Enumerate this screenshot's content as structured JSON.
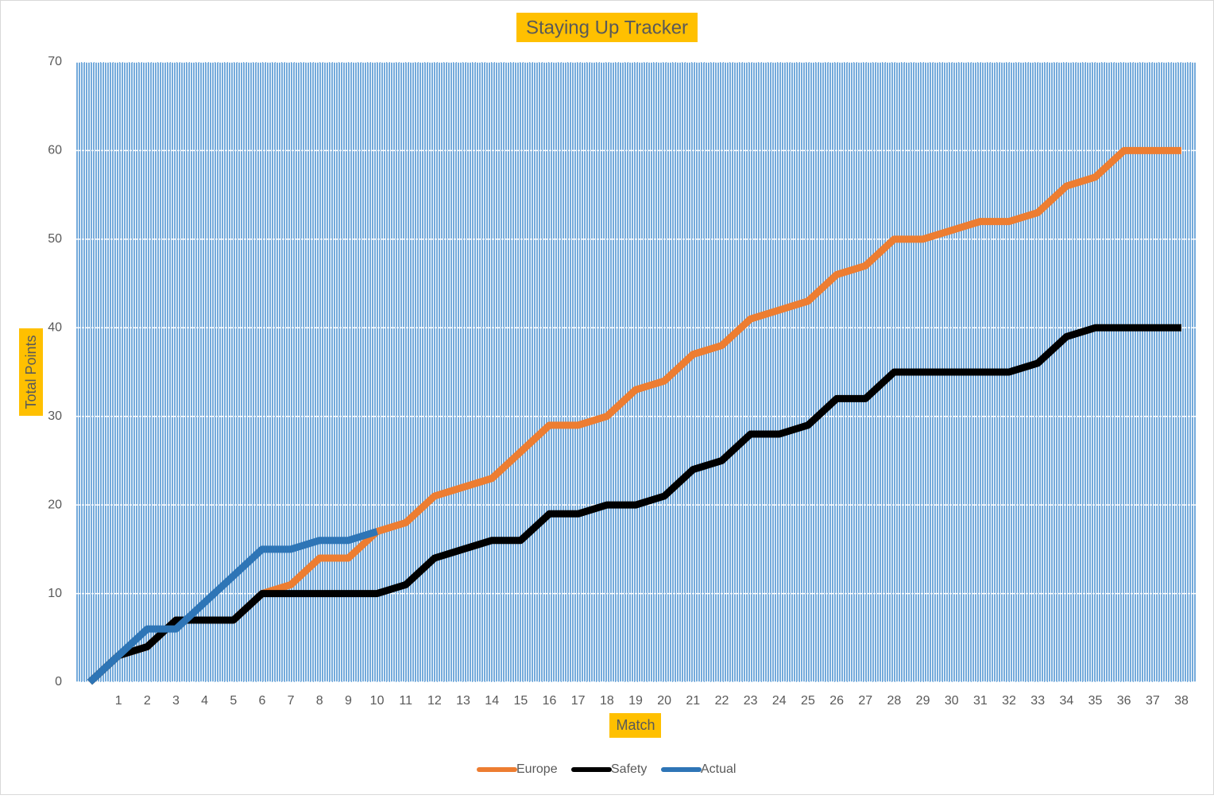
{
  "chart_data": {
    "type": "line",
    "title": "Staying Up Tracker",
    "x_label": "Match",
    "y_label": "Total Points",
    "categories": [
      null,
      "1",
      "2",
      "3",
      "4",
      "5",
      "6",
      "7",
      "8",
      "9",
      "10",
      "11",
      "12",
      "13",
      "14",
      "15",
      "16",
      "17",
      "18",
      "19",
      "20",
      "21",
      "22",
      "23",
      "24",
      "25",
      "26",
      "27",
      "28",
      "29",
      "30",
      "31",
      "32",
      "33",
      "34",
      "35",
      "36",
      "37",
      "38"
    ],
    "series": [
      {
        "name": "Europe",
        "color": "#ed7d31",
        "values": [
          0,
          3,
          4,
          7,
          7,
          7,
          10,
          11,
          14,
          14,
          17,
          18,
          21,
          22,
          23,
          26,
          29,
          29,
          30,
          33,
          34,
          37,
          38,
          41,
          42,
          43,
          46,
          47,
          50,
          50,
          51,
          52,
          52,
          53,
          56,
          57,
          60,
          60,
          60
        ]
      },
      {
        "name": "Safety",
        "color": "#000000",
        "values": [
          0,
          3,
          4,
          7,
          7,
          7,
          10,
          10,
          10,
          10,
          10,
          11,
          14,
          15,
          16,
          16,
          19,
          19,
          20,
          20,
          21,
          24,
          25,
          28,
          28,
          29,
          32,
          32,
          35,
          35,
          35,
          35,
          35,
          36,
          39,
          40,
          40,
          40,
          40
        ]
      },
      {
        "name": "Actual",
        "color": "#2e75b6",
        "values": [
          0,
          3,
          6,
          6,
          9,
          12,
          15,
          15,
          16,
          16,
          17,
          null,
          null,
          null,
          null,
          null,
          null,
          null,
          null,
          null,
          null,
          null,
          null,
          null,
          null,
          null,
          null,
          null,
          null,
          null,
          null,
          null,
          null,
          null,
          null,
          null,
          null,
          null,
          null
        ]
      }
    ],
    "ylim": [
      0,
      70
    ],
    "yticks": [
      0,
      10,
      20,
      30,
      40,
      50,
      60,
      70
    ],
    "grid": true,
    "legend": "bottom"
  }
}
